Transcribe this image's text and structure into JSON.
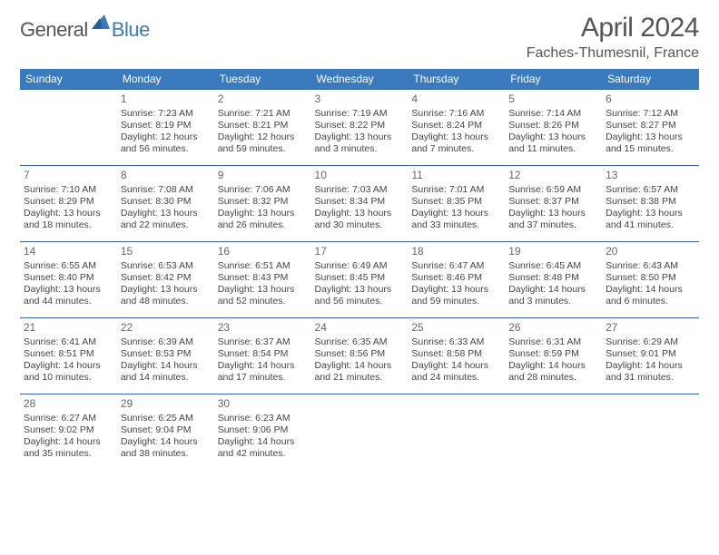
{
  "brand": {
    "part1": "General",
    "part2": "Blue"
  },
  "title": "April 2024",
  "location": "Faches-Thumesnil, France",
  "colors": {
    "header_bg": "#3a7abf",
    "header_text": "#ffffff",
    "line": "#3a6a9a",
    "text": "#444444",
    "title": "#555555",
    "brand_gray": "#555555",
    "brand_blue": "#3a7abf",
    "page_bg": "#ffffff"
  },
  "weekdays": [
    "Sunday",
    "Monday",
    "Tuesday",
    "Wednesday",
    "Thursday",
    "Friday",
    "Saturday"
  ],
  "weeks": [
    [
      null,
      {
        "n": "1",
        "sr": "Sunrise: 7:23 AM",
        "ss": "Sunset: 8:19 PM",
        "d1": "Daylight: 12 hours",
        "d2": "and 56 minutes."
      },
      {
        "n": "2",
        "sr": "Sunrise: 7:21 AM",
        "ss": "Sunset: 8:21 PM",
        "d1": "Daylight: 12 hours",
        "d2": "and 59 minutes."
      },
      {
        "n": "3",
        "sr": "Sunrise: 7:19 AM",
        "ss": "Sunset: 8:22 PM",
        "d1": "Daylight: 13 hours",
        "d2": "and 3 minutes."
      },
      {
        "n": "4",
        "sr": "Sunrise: 7:16 AM",
        "ss": "Sunset: 8:24 PM",
        "d1": "Daylight: 13 hours",
        "d2": "and 7 minutes."
      },
      {
        "n": "5",
        "sr": "Sunrise: 7:14 AM",
        "ss": "Sunset: 8:26 PM",
        "d1": "Daylight: 13 hours",
        "d2": "and 11 minutes."
      },
      {
        "n": "6",
        "sr": "Sunrise: 7:12 AM",
        "ss": "Sunset: 8:27 PM",
        "d1": "Daylight: 13 hours",
        "d2": "and 15 minutes."
      }
    ],
    [
      {
        "n": "7",
        "sr": "Sunrise: 7:10 AM",
        "ss": "Sunset: 8:29 PM",
        "d1": "Daylight: 13 hours",
        "d2": "and 18 minutes."
      },
      {
        "n": "8",
        "sr": "Sunrise: 7:08 AM",
        "ss": "Sunset: 8:30 PM",
        "d1": "Daylight: 13 hours",
        "d2": "and 22 minutes."
      },
      {
        "n": "9",
        "sr": "Sunrise: 7:06 AM",
        "ss": "Sunset: 8:32 PM",
        "d1": "Daylight: 13 hours",
        "d2": "and 26 minutes."
      },
      {
        "n": "10",
        "sr": "Sunrise: 7:03 AM",
        "ss": "Sunset: 8:34 PM",
        "d1": "Daylight: 13 hours",
        "d2": "and 30 minutes."
      },
      {
        "n": "11",
        "sr": "Sunrise: 7:01 AM",
        "ss": "Sunset: 8:35 PM",
        "d1": "Daylight: 13 hours",
        "d2": "and 33 minutes."
      },
      {
        "n": "12",
        "sr": "Sunrise: 6:59 AM",
        "ss": "Sunset: 8:37 PM",
        "d1": "Daylight: 13 hours",
        "d2": "and 37 minutes."
      },
      {
        "n": "13",
        "sr": "Sunrise: 6:57 AM",
        "ss": "Sunset: 8:38 PM",
        "d1": "Daylight: 13 hours",
        "d2": "and 41 minutes."
      }
    ],
    [
      {
        "n": "14",
        "sr": "Sunrise: 6:55 AM",
        "ss": "Sunset: 8:40 PM",
        "d1": "Daylight: 13 hours",
        "d2": "and 44 minutes."
      },
      {
        "n": "15",
        "sr": "Sunrise: 6:53 AM",
        "ss": "Sunset: 8:42 PM",
        "d1": "Daylight: 13 hours",
        "d2": "and 48 minutes."
      },
      {
        "n": "16",
        "sr": "Sunrise: 6:51 AM",
        "ss": "Sunset: 8:43 PM",
        "d1": "Daylight: 13 hours",
        "d2": "and 52 minutes."
      },
      {
        "n": "17",
        "sr": "Sunrise: 6:49 AM",
        "ss": "Sunset: 8:45 PM",
        "d1": "Daylight: 13 hours",
        "d2": "and 56 minutes."
      },
      {
        "n": "18",
        "sr": "Sunrise: 6:47 AM",
        "ss": "Sunset: 8:46 PM",
        "d1": "Daylight: 13 hours",
        "d2": "and 59 minutes."
      },
      {
        "n": "19",
        "sr": "Sunrise: 6:45 AM",
        "ss": "Sunset: 8:48 PM",
        "d1": "Daylight: 14 hours",
        "d2": "and 3 minutes."
      },
      {
        "n": "20",
        "sr": "Sunrise: 6:43 AM",
        "ss": "Sunset: 8:50 PM",
        "d1": "Daylight: 14 hours",
        "d2": "and 6 minutes."
      }
    ],
    [
      {
        "n": "21",
        "sr": "Sunrise: 6:41 AM",
        "ss": "Sunset: 8:51 PM",
        "d1": "Daylight: 14 hours",
        "d2": "and 10 minutes."
      },
      {
        "n": "22",
        "sr": "Sunrise: 6:39 AM",
        "ss": "Sunset: 8:53 PM",
        "d1": "Daylight: 14 hours",
        "d2": "and 14 minutes."
      },
      {
        "n": "23",
        "sr": "Sunrise: 6:37 AM",
        "ss": "Sunset: 8:54 PM",
        "d1": "Daylight: 14 hours",
        "d2": "and 17 minutes."
      },
      {
        "n": "24",
        "sr": "Sunrise: 6:35 AM",
        "ss": "Sunset: 8:56 PM",
        "d1": "Daylight: 14 hours",
        "d2": "and 21 minutes."
      },
      {
        "n": "25",
        "sr": "Sunrise: 6:33 AM",
        "ss": "Sunset: 8:58 PM",
        "d1": "Daylight: 14 hours",
        "d2": "and 24 minutes."
      },
      {
        "n": "26",
        "sr": "Sunrise: 6:31 AM",
        "ss": "Sunset: 8:59 PM",
        "d1": "Daylight: 14 hours",
        "d2": "and 28 minutes."
      },
      {
        "n": "27",
        "sr": "Sunrise: 6:29 AM",
        "ss": "Sunset: 9:01 PM",
        "d1": "Daylight: 14 hours",
        "d2": "and 31 minutes."
      }
    ],
    [
      {
        "n": "28",
        "sr": "Sunrise: 6:27 AM",
        "ss": "Sunset: 9:02 PM",
        "d1": "Daylight: 14 hours",
        "d2": "and 35 minutes."
      },
      {
        "n": "29",
        "sr": "Sunrise: 6:25 AM",
        "ss": "Sunset: 9:04 PM",
        "d1": "Daylight: 14 hours",
        "d2": "and 38 minutes."
      },
      {
        "n": "30",
        "sr": "Sunrise: 6:23 AM",
        "ss": "Sunset: 9:06 PM",
        "d1": "Daylight: 14 hours",
        "d2": "and 42 minutes."
      },
      null,
      null,
      null,
      null
    ]
  ]
}
